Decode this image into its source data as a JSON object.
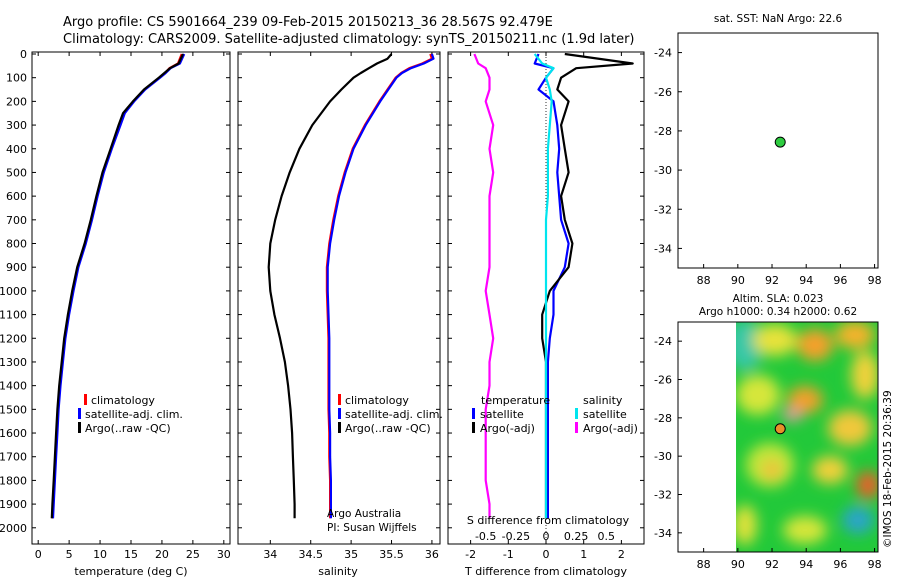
{
  "header": {
    "line1": "Argo profile: CS 5901664_239 09-Feb-2015 20150213_36 28.567S 92.479E",
    "line2": "Climatology: CARS2009. Satellite-adjusted climatology: synTS_20150211.nc (1.9d later)"
  },
  "depth_ticks": [
    "0",
    "100",
    "200",
    "300",
    "400",
    "500",
    "600",
    "700",
    "800",
    "900",
    "1000",
    "1100",
    "1200",
    "1300",
    "1400",
    "1500",
    "1600",
    "1700",
    "1800",
    "1900",
    "2000"
  ],
  "legend": {
    "climatology": "climatology",
    "satellite_clim": "satellite-adj. clim.",
    "argo_raw": "Argo(..raw -QC)",
    "temperature_head": "temperature",
    "salinity_head": "salinity",
    "satellite": "satellite",
    "argo_adj": "Argo(-adj)"
  },
  "credits": {
    "line1": "Argo Australia",
    "line2": "PI: Susan Wijffels"
  },
  "colors": {
    "climatology": "#ff0000",
    "satellite": "#0000ff",
    "argo": "#000000",
    "sat_diff_s": "#00e5ee",
    "argo_diff_s": "#ff00ff",
    "marker_sst": "#2ecc40",
    "marker_sla": "#e8902a"
  },
  "chart_data": [
    {
      "type": "line",
      "name": "temperature-profile",
      "xlabel": "temperature (deg C)",
      "ylabel": "",
      "xlim": [
        -1,
        31
      ],
      "ylim": [
        2060,
        0
      ],
      "xticks": [
        "0",
        "5",
        "10",
        "15",
        "20",
        "25",
        "30"
      ],
      "depth": [
        0,
        40,
        60,
        80,
        100,
        150,
        200,
        250,
        300,
        400,
        500,
        600,
        700,
        800,
        900,
        1000,
        1100,
        1200,
        1300,
        1400,
        1500,
        1600,
        1700,
        1800,
        1900,
        1960
      ],
      "series": [
        {
          "name": "climatology",
          "values": [
            23.2,
            22.6,
            21.2,
            20.5,
            19.6,
            17.2,
            15.4,
            13.9,
            13.2,
            11.8,
            10.5,
            9.5,
            8.6,
            7.6,
            6.4,
            5.6,
            4.9,
            4.3,
            3.9,
            3.5,
            3.2,
            3.0,
            2.8,
            2.6,
            2.4,
            2.3
          ]
        },
        {
          "name": "satellite-adj. clim.",
          "values": [
            23.6,
            22.9,
            21.4,
            20.6,
            19.7,
            17.3,
            15.5,
            14.0,
            13.3,
            11.9,
            10.6,
            9.6,
            8.7,
            7.7,
            6.5,
            5.7,
            5.0,
            4.4,
            4.0,
            3.6,
            3.3,
            3.1,
            2.9,
            2.7,
            2.5,
            2.4
          ]
        },
        {
          "name": "Argo(..raw -QC)",
          "values": [
            23.4,
            22.7,
            21.3,
            20.4,
            19.5,
            17.1,
            15.3,
            13.7,
            13.0,
            11.7,
            10.4,
            9.4,
            8.5,
            7.5,
            6.3,
            5.5,
            4.8,
            4.2,
            3.8,
            3.4,
            3.1,
            2.9,
            2.7,
            2.5,
            2.3,
            2.2
          ]
        }
      ]
    },
    {
      "type": "line",
      "name": "salinity-profile",
      "xlabel": "salinity",
      "xlim": [
        33.6,
        36.1
      ],
      "ylim": [
        2060,
        0
      ],
      "xticks": [
        "34",
        "34.5",
        "35",
        "35.5",
        "36"
      ],
      "depth": [
        0,
        20,
        40,
        60,
        80,
        100,
        150,
        200,
        300,
        400,
        500,
        600,
        700,
        800,
        900,
        1000,
        1100,
        1200,
        1300,
        1400,
        1500,
        1600,
        1700,
        1800,
        1900,
        1960
      ],
      "series": [
        {
          "name": "climatology",
          "values": [
            35.98,
            36.0,
            35.88,
            35.72,
            35.62,
            35.55,
            35.45,
            35.35,
            35.17,
            35.02,
            34.92,
            34.84,
            34.78,
            34.73,
            34.7,
            34.7,
            34.71,
            34.72,
            34.72,
            34.72,
            34.72,
            34.73,
            34.73,
            34.74,
            34.74,
            34.74
          ]
        },
        {
          "name": "satellite-adj. clim.",
          "values": [
            36.0,
            36.02,
            35.9,
            35.74,
            35.63,
            35.56,
            35.46,
            35.36,
            35.18,
            35.03,
            34.93,
            34.85,
            34.79,
            34.74,
            34.71,
            34.71,
            34.72,
            34.73,
            34.73,
            34.73,
            34.73,
            34.74,
            34.74,
            34.75,
            34.75,
            34.75
          ]
        },
        {
          "name": "Argo(..raw -QC)",
          "values": [
            35.5,
            35.45,
            35.32,
            35.22,
            35.12,
            35.03,
            34.88,
            34.74,
            34.52,
            34.36,
            34.24,
            34.14,
            34.06,
            34.0,
            33.98,
            34.0,
            34.05,
            34.12,
            34.18,
            34.22,
            34.25,
            34.27,
            34.28,
            34.29,
            34.3,
            34.3
          ]
        }
      ]
    },
    {
      "type": "line",
      "name": "difference-profile",
      "xlabel": "T difference from climatology",
      "xlabel_top": "S difference from climatology",
      "xlim": [
        -2.6,
        2.6
      ],
      "ylim": [
        2060,
        0
      ],
      "xticks": [
        "-2",
        "-1",
        "0",
        "1",
        "2"
      ],
      "xticks_top": [
        "-0.5",
        "-0.25",
        "0",
        "0.25",
        "0.5"
      ],
      "depth": [
        0,
        40,
        60,
        100,
        150,
        200,
        300,
        400,
        500,
        600,
        700,
        800,
        900,
        1000,
        1100,
        1200,
        1300,
        1400,
        1500,
        1600,
        1700,
        1800,
        1900,
        1960
      ],
      "series": [
        {
          "name": "temperature satellite",
          "values": [
            -0.2,
            -0.3,
            0.2,
            0.0,
            -0.2,
            0.2,
            0.3,
            0.35,
            0.3,
            0.35,
            0.4,
            0.6,
            0.5,
            0.2,
            0.2,
            0.1,
            0.05,
            0.05,
            0.05,
            0.05,
            0.05,
            0.05,
            0.05,
            0.05
          ]
        },
        {
          "name": "temperature Argo(-adj)",
          "values": [
            0.5,
            2.3,
            0.8,
            0.4,
            0.3,
            0.6,
            0.4,
            0.5,
            0.6,
            0.4,
            0.5,
            0.7,
            0.6,
            0.1,
            -0.1,
            -0.1,
            0.0,
            0.0,
            0.0,
            0.0,
            0.0,
            0.0,
            0.0,
            0.0
          ]
        },
        {
          "name": "salinity satellite",
          "values": [
            -0.3,
            -0.1,
            0.2,
            0.0,
            0.1,
            0.15,
            0.1,
            0.05,
            0.05,
            0.05,
            0.0,
            0.0,
            0.0,
            0.0,
            0.0,
            0.0,
            0.0,
            0.0,
            0.0,
            0.0,
            0.0,
            0.0,
            0.0,
            0.0
          ]
        },
        {
          "name": "salinity Argo(-adj)",
          "values": [
            -1.9,
            -1.8,
            -1.6,
            -1.5,
            -1.5,
            -1.6,
            -1.4,
            -1.5,
            -1.4,
            -1.5,
            -1.5,
            -1.5,
            -1.5,
            -1.6,
            -1.5,
            -1.4,
            -1.5,
            -1.5,
            -1.6,
            -1.6,
            -1.6,
            -1.6,
            -1.5,
            -1.5
          ]
        }
      ]
    },
    {
      "type": "scatter",
      "name": "sst-map",
      "title": "sat. SST: NaN Argo: 22.6",
      "xlim": [
        86.5,
        98.2
      ],
      "ylim": [
        -35,
        -23
      ],
      "xticks": [
        "88",
        "90",
        "92",
        "94",
        "96",
        "98"
      ],
      "yticks": [
        "-24",
        "-26",
        "-28",
        "-30",
        "-32",
        "-34"
      ],
      "points": [
        {
          "x": 92.48,
          "y": -28.57
        }
      ]
    },
    {
      "type": "heatmap",
      "name": "sla-map",
      "title_line1": "Altim. SLA: 0.023",
      "title_line2": "Argo h1000: 0.34 h2000: 0.62",
      "xlim": [
        86.5,
        98.2
      ],
      "ylim": [
        -35,
        -23
      ],
      "xticks": [
        "88",
        "90",
        "92",
        "94",
        "96",
        "98"
      ],
      "yticks": [
        "-24",
        "-26",
        "-28",
        "-30",
        "-32",
        "-34"
      ],
      "points": [
        {
          "x": 92.48,
          "y": -28.57
        }
      ]
    }
  ],
  "footer": "©IMOS 18-Feb-2015 20:36:39"
}
